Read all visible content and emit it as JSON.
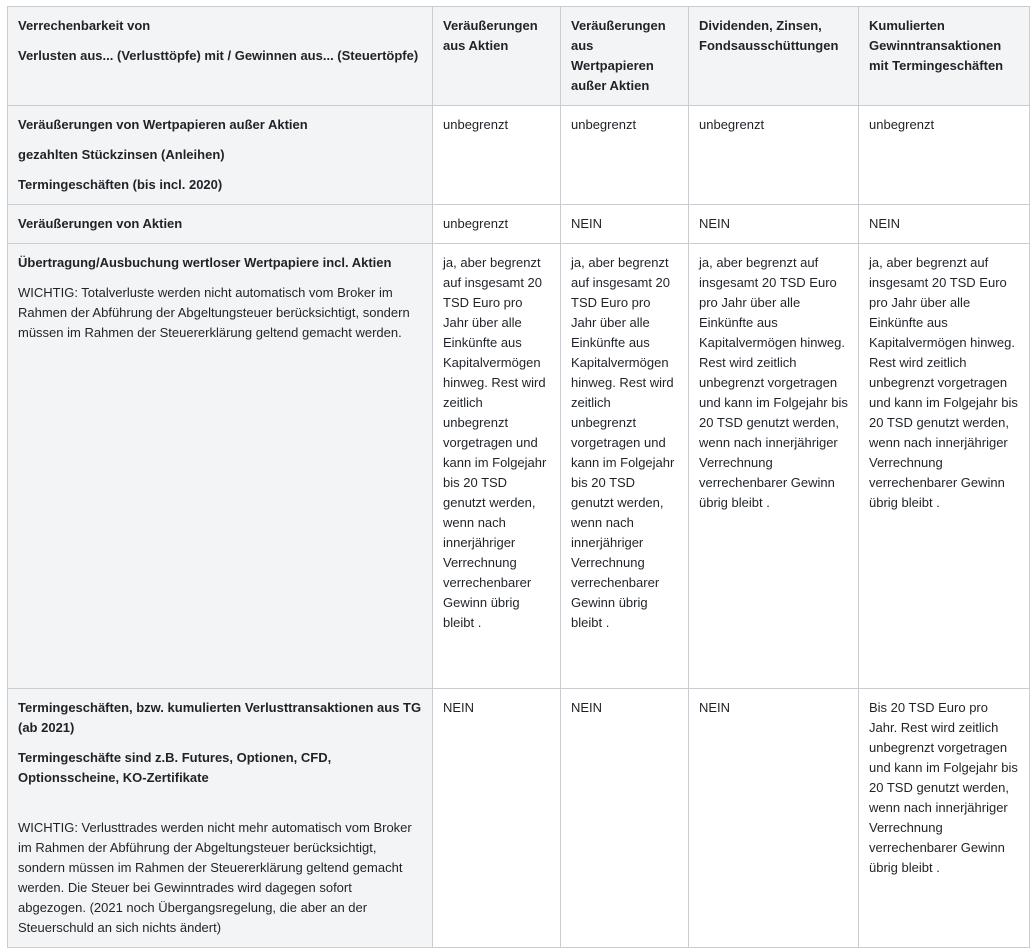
{
  "table": {
    "header": {
      "corner": [
        "Verrechenbarkeit von",
        "Verlusten aus... (Verlusttöpfe) mit /  Gewinnen aus... (Steuertöpfe)"
      ],
      "columns": [
        "Veräußerungen aus Aktien",
        "Veräußerungen aus Wertpapieren außer Aktien",
        "Dividenden, Zinsen, Fondsausschüttungen",
        "Kumulierten Gewinntransaktionen mit Termingeschäften"
      ]
    },
    "rows": [
      {
        "head": [
          "Veräußerungen von Wertpapieren außer Aktien",
          "gezahlten Stückzinsen (Anleihen)",
          "Termingeschäften (bis incl. 2020)"
        ],
        "cells": [
          "unbegrenzt",
          "unbegrenzt",
          "unbegrenzt",
          "unbegrenzt"
        ]
      },
      {
        "head": [
          "Veräußerungen von Aktien"
        ],
        "cells": [
          "unbegrenzt",
          "NEIN",
          "NEIN",
          "NEIN"
        ]
      },
      {
        "head": [
          "Übertragung/Ausbuchung wertloser Wertpapiere incl. Aktien"
        ],
        "note": "WICHTIG: Totalverluste werden nicht automatisch vom Broker im Rahmen der Abführung der Abgeltungsteuer berücksichtigt, sondern müssen im Rahmen der Steuererklärung geltend gemacht werden.",
        "cells": [
          "ja, aber begrenzt auf insgesamt 20 TSD Euro pro Jahr über alle Einkünfte aus Kapitalvermögen hinweg. Rest wird zeitlich unbegrenzt vorgetragen und kann im Folgejahr bis 20 TSD genutzt werden, wenn nach innerjähriger Verrechnung verrechenbarer Gewinn übrig bleibt .",
          "ja, aber begrenzt auf insgesamt 20 TSD Euro pro Jahr über alle Einkünfte aus Kapitalvermögen hinweg. Rest wird zeitlich unbegrenzt vorgetragen und kann im Folgejahr bis 20 TSD genutzt werden, wenn nach innerjähriger Verrechnung verrechenbarer Gewinn übrig bleibt .",
          "ja, aber begrenzt auf insgesamt 20 TSD Euro pro Jahr über alle Einkünfte aus Kapitalvermögen hinweg. Rest wird zeitlich unbegrenzt vorgetragen und kann im Folgejahr bis 20 TSD genutzt werden, wenn nach innerjähriger Verrechnung verrechenbarer Gewinn übrig bleibt .",
          "ja, aber begrenzt auf insgesamt 20 TSD Euro pro Jahr über alle Einkünfte aus Kapitalvermögen hinweg. Rest wird zeitlich unbegrenzt vorgetragen und kann im Folgejahr bis 20 TSD genutzt werden, wenn nach innerjähriger Verrechnung verrechenbarer Gewinn übrig bleibt ."
        ]
      },
      {
        "head": [
          "Termingeschäften, bzw. kumulierten Verlusttransaktionen aus TG  (ab 2021)",
          "Termingeschäfte sind z.B. Futures, Optionen, CFD, Optionsscheine, KO-Zertifikate"
        ],
        "note": "WICHTIG: Verlusttrades werden nicht mehr automatisch vom Broker im Rahmen der Abführung der Abgeltungsteuer berücksichtigt, sondern müssen im Rahmen der Steuererklärung geltend gemacht werden. Die Steuer bei Gewinntrades wird dagegen sofort abgezogen. (2021 noch Übergangsregelung, die aber an der Steuerschuld an sich nichts ändert)",
        "cells": [
          "NEIN",
          "NEIN",
          "NEIN",
          "Bis 20 TSD Euro pro Jahr. Rest wird zeitlich unbegrenzt vorgetragen und kann im Folgejahr bis 20 TSD genutzt werden, wenn nach innerjähriger Verrechnung verrechenbarer Gewinn übrig bleibt ."
        ]
      }
    ]
  }
}
